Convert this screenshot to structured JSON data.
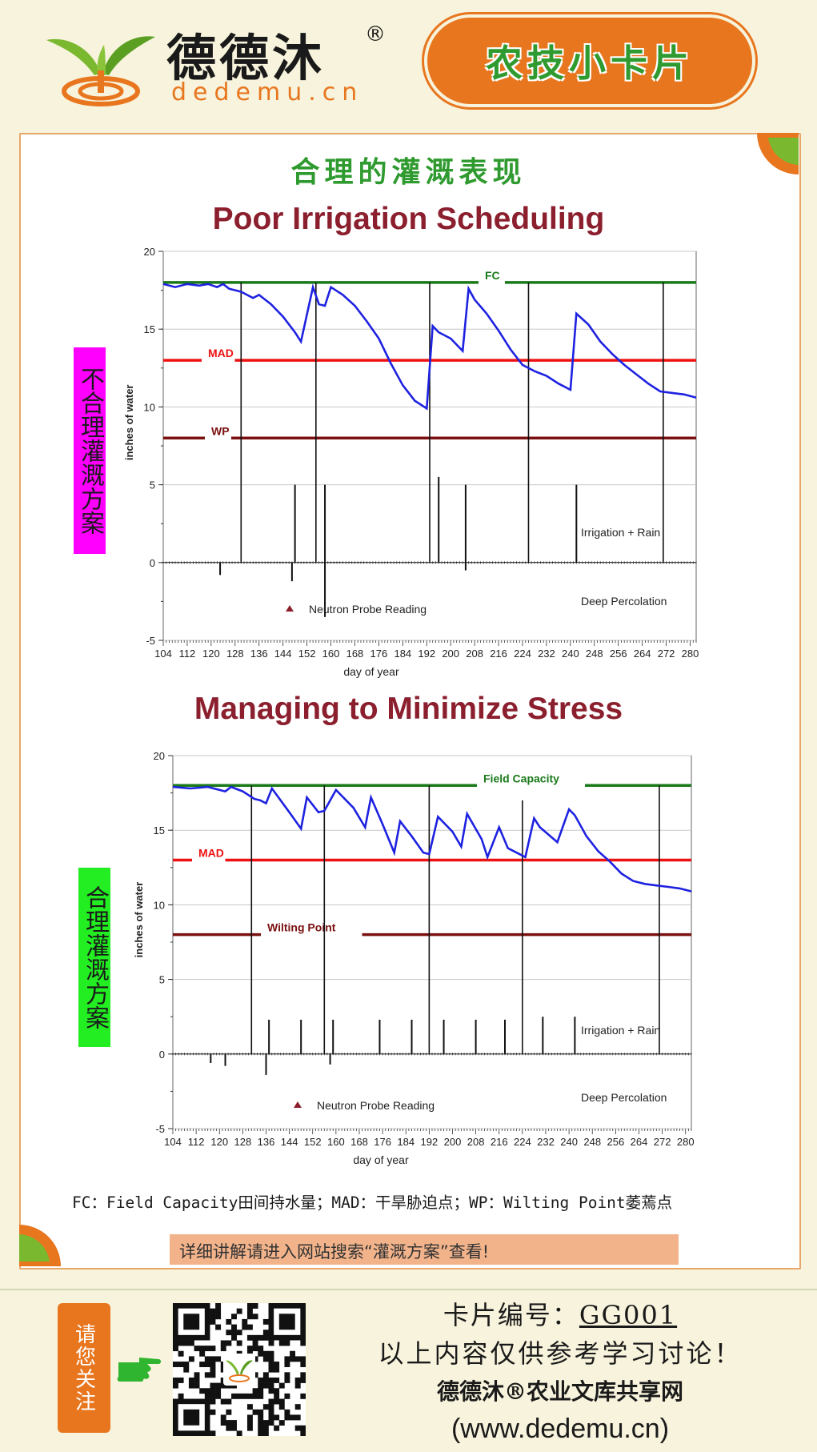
{
  "header": {
    "brand_name": "德德沐",
    "brand_reg": "®",
    "brand_url": "dedemu.cn",
    "badge_text": "农技小卡片",
    "accent_color": "#e8761e",
    "green_color": "#2f9a2f"
  },
  "card": {
    "section_title": "合理的灌溉表现",
    "side_label_poor": "不合理灌溉方案",
    "side_label_good": "合理灌溉方案",
    "side_label_poor_bg": "#ff00ff",
    "side_label_good_bg": "#22ee22",
    "legend_note": "FC：Field Capacity田间持水量；MAD：干旱胁迫点；WP：Wilting Point萎蔫点",
    "cta": "详细讲解请进入网站搜索“灌溉方案”查看!"
  },
  "footer": {
    "follow": "请您关注",
    "card_no_label": "卡片编号：",
    "card_no": "GG001",
    "disclaimer": "以上内容仅供参考学习讨论！",
    "site_name": "德德沐®农业文库共享网",
    "site_url": "(www.dedemu.cn)"
  },
  "chart_data": [
    {
      "type": "line",
      "title": "Poor Irrigation Scheduling",
      "xlabel": "day of year",
      "ylabel": "inches of water",
      "xlim": [
        104,
        282
      ],
      "ylim": [
        -5,
        20
      ],
      "xticks": [
        104,
        112,
        120,
        128,
        136,
        144,
        152,
        160,
        168,
        176,
        184,
        192,
        200,
        208,
        216,
        224,
        232,
        240,
        248,
        256,
        264,
        272,
        280
      ],
      "yticks": [
        -5,
        0,
        5,
        10,
        15,
        20
      ],
      "grid": true,
      "reference_lines": [
        {
          "label": "FC",
          "value": 18,
          "color": "#1a7a1a"
        },
        {
          "label": "MAD",
          "value": 13,
          "color": "#ee1111"
        },
        {
          "label": "WP",
          "value": 8,
          "color": "#7a1010"
        }
      ],
      "series": [
        {
          "color": "#1e22e0",
          "x": [
            104,
            108,
            112,
            116,
            119,
            122,
            124,
            126,
            130,
            134,
            136,
            140,
            144,
            148,
            150,
            154,
            156,
            158,
            160,
            164,
            168,
            172,
            176,
            180,
            184,
            188,
            192,
            194,
            196,
            200,
            204,
            206,
            208,
            212,
            216,
            220,
            224,
            228,
            232,
            236,
            240,
            242,
            246,
            250,
            254,
            258,
            262,
            266,
            270,
            274,
            278,
            282
          ],
          "y": [
            17.9,
            17.7,
            17.9,
            17.8,
            17.9,
            17.7,
            17.9,
            17.6,
            17.4,
            17.0,
            17.2,
            16.6,
            15.8,
            14.8,
            14.2,
            17.7,
            16.6,
            16.5,
            17.7,
            17.2,
            16.5,
            15.5,
            14.4,
            12.8,
            11.4,
            10.4,
            9.9,
            15.2,
            14.8,
            14.4,
            13.6,
            17.6,
            16.9,
            16.0,
            14.9,
            13.7,
            12.7,
            12.3,
            12.0,
            11.5,
            11.1,
            16.0,
            15.3,
            14.2,
            13.4,
            12.7,
            12.1,
            11.5,
            11.0,
            10.9,
            10.8,
            10.6
          ]
        }
      ],
      "irrigation_events": [
        {
          "day": 130,
          "value": 18
        },
        {
          "day": 148,
          "value": 5
        },
        {
          "day": 155,
          "value": 18
        },
        {
          "day": 158,
          "value": 5
        },
        {
          "day": 193,
          "value": 18
        },
        {
          "day": 196,
          "value": 5.5
        },
        {
          "day": 205,
          "value": 5
        },
        {
          "day": 226,
          "value": 18
        },
        {
          "day": 242,
          "value": 5
        },
        {
          "day": 271,
          "value": 18
        }
      ],
      "deep_percolation": [
        {
          "day": 147,
          "value": -1.2
        },
        {
          "day": 158,
          "value": -3.5
        },
        {
          "day": 205,
          "value": -0.5
        },
        {
          "day": 123,
          "value": -0.8
        }
      ],
      "annotations": [
        "Irrigation + Rain",
        "Deep Percolation",
        "Neutron Probe Reading"
      ]
    },
    {
      "type": "line",
      "title": "Managing to Minimize Stress",
      "xlabel": "day of year",
      "ylabel": "inches of water",
      "xlim": [
        104,
        282
      ],
      "ylim": [
        -5,
        20
      ],
      "xticks": [
        104,
        112,
        120,
        128,
        136,
        144,
        152,
        160,
        168,
        176,
        184,
        192,
        200,
        208,
        216,
        224,
        232,
        240,
        248,
        256,
        264,
        272,
        280
      ],
      "yticks": [
        -5,
        0,
        5,
        10,
        15,
        20
      ],
      "grid": true,
      "reference_lines": [
        {
          "label": "Field Capacity",
          "value": 18,
          "color": "#1a7a1a"
        },
        {
          "label": "MAD",
          "value": 13,
          "color": "#ee1111"
        },
        {
          "label": "Wilting Point",
          "value": 8,
          "color": "#7a1010"
        }
      ],
      "series": [
        {
          "color": "#1e22e0",
          "x": [
            104,
            110,
            116,
            122,
            124,
            128,
            132,
            134,
            136,
            138,
            144,
            148,
            150,
            154,
            156,
            160,
            166,
            170,
            172,
            176,
            180,
            182,
            186,
            190,
            192,
            195,
            200,
            203,
            205,
            210,
            212,
            216,
            219,
            221,
            225,
            228,
            230,
            236,
            240,
            242,
            246,
            250,
            254,
            258,
            262,
            266,
            270,
            274,
            278,
            282
          ],
          "y": [
            17.9,
            17.8,
            17.9,
            17.6,
            17.9,
            17.6,
            17.1,
            17.0,
            16.8,
            17.8,
            16.2,
            15.1,
            17.2,
            16.2,
            16.3,
            17.7,
            16.5,
            15.2,
            17.2,
            15.4,
            13.5,
            15.6,
            14.6,
            13.5,
            13.4,
            15.9,
            14.9,
            13.9,
            16.1,
            14.4,
            13.2,
            15.2,
            13.8,
            13.6,
            13.2,
            15.8,
            15.2,
            14.2,
            16.4,
            16.0,
            14.6,
            13.6,
            12.9,
            12.1,
            11.6,
            11.4,
            11.3,
            11.2,
            11.1,
            10.9
          ]
        }
      ],
      "irrigation_events": [
        {
          "day": 131,
          "value": 18
        },
        {
          "day": 137,
          "value": 2.3
        },
        {
          "day": 148,
          "value": 2.3
        },
        {
          "day": 156,
          "value": 18
        },
        {
          "day": 159,
          "value": 2.3
        },
        {
          "day": 175,
          "value": 2.3
        },
        {
          "day": 186,
          "value": 2.3
        },
        {
          "day": 192,
          "value": 18
        },
        {
          "day": 197,
          "value": 2.3
        },
        {
          "day": 208,
          "value": 2.3
        },
        {
          "day": 218,
          "value": 2.3
        },
        {
          "day": 224,
          "value": 17
        },
        {
          "day": 231,
          "value": 2.5
        },
        {
          "day": 242,
          "value": 2.5
        },
        {
          "day": 271,
          "value": 18
        }
      ],
      "deep_percolation": [
        {
          "day": 136,
          "value": -1.4
        },
        {
          "day": 158,
          "value": -0.7
        },
        {
          "day": 117,
          "value": -0.6
        },
        {
          "day": 122,
          "value": -0.8
        }
      ],
      "annotations": [
        "Irrigation + Rain",
        "Deep Percolation",
        "Neutron Probe Reading"
      ]
    }
  ]
}
